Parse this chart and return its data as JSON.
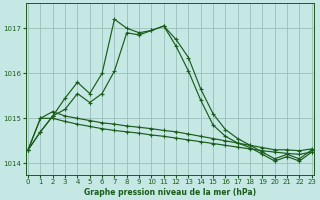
{
  "title": "Graphe pression niveau de la mer (hPa)",
  "bg_color": "#c5e8e5",
  "grid_color": "#9dbfba",
  "line_color": "#1a5c1a",
  "xlim": [
    -0.2,
    23.2
  ],
  "ylim": [
    1013.75,
    1017.55
  ],
  "yticks": [
    1014,
    1015,
    1016,
    1017
  ],
  "xticks": [
    0,
    1,
    2,
    3,
    4,
    5,
    6,
    7,
    8,
    9,
    10,
    11,
    12,
    13,
    14,
    15,
    16,
    17,
    18,
    19,
    20,
    21,
    22,
    23
  ],
  "series": [
    [
      1014.3,
      1014.7,
      1015.05,
      1015.45,
      1015.8,
      1015.55,
      1016.0,
      1017.2,
      1017.0,
      1016.9,
      1016.95,
      1017.05,
      1016.75,
      1016.35,
      1015.65,
      1015.1,
      1014.75,
      1014.55,
      1014.4,
      1014.25,
      1014.1,
      1014.2,
      1014.1,
      1014.3
    ],
    [
      1014.3,
      1014.7,
      1015.05,
      1015.2,
      1015.55,
      1015.35,
      1015.55,
      1016.05,
      1016.9,
      1016.85,
      1016.95,
      1017.05,
      1016.6,
      1016.05,
      1015.4,
      1014.85,
      1014.6,
      1014.45,
      1014.35,
      1014.2,
      1014.05,
      1014.15,
      1014.05,
      1014.25
    ],
    [
      1014.3,
      1015.0,
      1015.15,
      1015.05,
      1015.0,
      1014.95,
      1014.9,
      1014.87,
      1014.83,
      1014.8,
      1014.77,
      1014.73,
      1014.7,
      1014.65,
      1014.6,
      1014.55,
      1014.5,
      1014.45,
      1014.4,
      1014.35,
      1014.3,
      1014.3,
      1014.28,
      1014.32
    ],
    [
      1014.3,
      1015.0,
      1015.0,
      1014.93,
      1014.87,
      1014.82,
      1014.77,
      1014.73,
      1014.7,
      1014.67,
      1014.63,
      1014.6,
      1014.56,
      1014.52,
      1014.48,
      1014.44,
      1014.4,
      1014.36,
      1014.32,
      1014.28,
      1014.25,
      1014.22,
      1014.2,
      1014.25
    ]
  ]
}
